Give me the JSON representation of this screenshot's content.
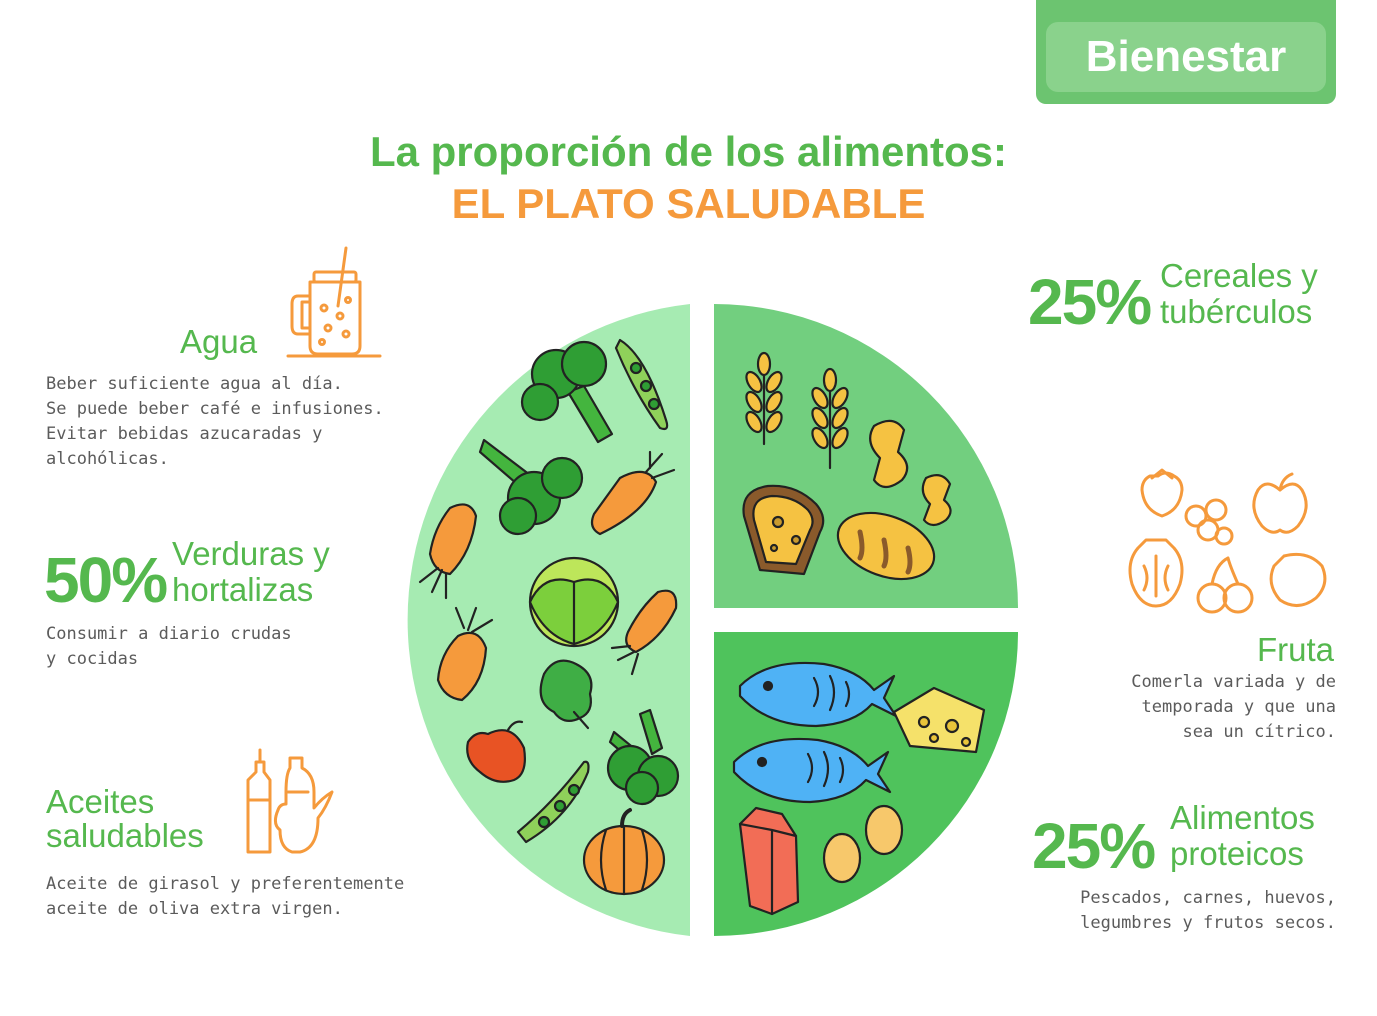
{
  "brand": {
    "name": "Bienestar"
  },
  "title": {
    "line1": "La proporción de los alimentos:",
    "line2": "EL PLATO SALUDABLE"
  },
  "sections": {
    "agua": {
      "heading": "Agua",
      "text": "Beber suficiente agua al día.\nSe puede beber café e infusiones.\nEvitar bebidas azucaradas y\nalcohólicas."
    },
    "verduras": {
      "percent": "50%",
      "heading_line1": "Verduras y",
      "heading_line2": "hortalizas",
      "text": "Consumir a diario crudas\ny cocidas"
    },
    "aceites": {
      "heading_line1": "Aceites",
      "heading_line2": "saludables",
      "text": "Aceite de girasol y preferentemente\naceite de oliva extra virgen."
    },
    "cereales": {
      "percent": "25%",
      "heading_line1": "Cereales y",
      "heading_line2": "tubérculos"
    },
    "fruta": {
      "heading": "Fruta",
      "text": "Comerla variada y de\ntemporada y que una\nsea un cítrico."
    },
    "proteicos": {
      "percent": "25%",
      "heading_line1": "Alimentos",
      "heading_line2": "proteicos",
      "text": "Pescados, carnes, huevos,\nlegumbres y frutos secos."
    }
  },
  "colors": {
    "green_text": "#55b84e",
    "orange_text": "#f59a3c",
    "plate_vegetables": "#a6ebb2",
    "plate_cereals": "#72cf7f",
    "plate_proteins": "#4fc35c"
  }
}
